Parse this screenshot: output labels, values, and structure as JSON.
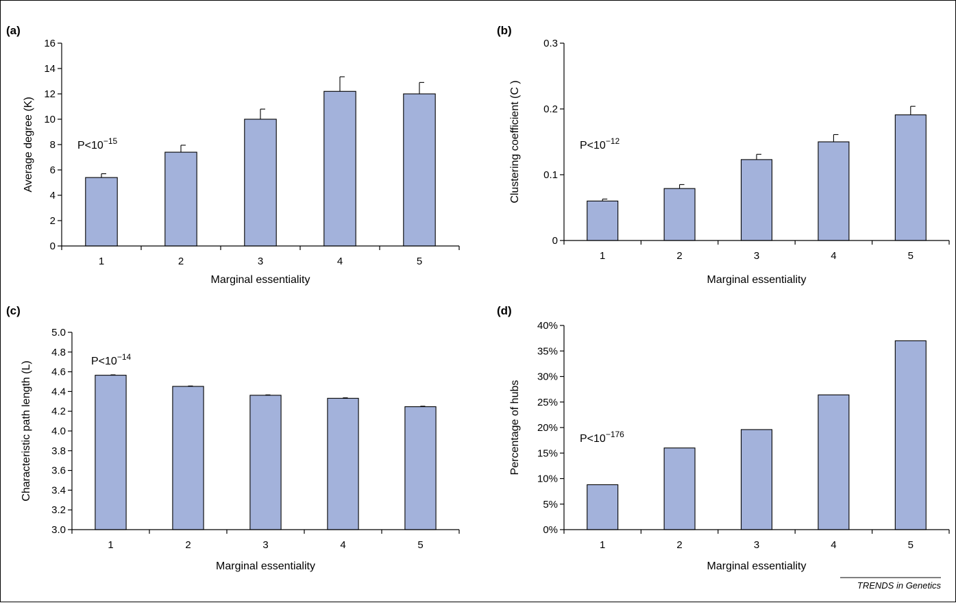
{
  "bar_color": "#a3b2db",
  "credit": "TRENDS in Genetics",
  "chart_data": [
    {
      "panel": "(a)",
      "type": "bar",
      "categories": [
        "1",
        "2",
        "3",
        "4",
        "5"
      ],
      "values": [
        5.4,
        7.4,
        10.0,
        12.2,
        12.0
      ],
      "errors": [
        0.3,
        0.55,
        0.8,
        1.15,
        0.9
      ],
      "ylim": [
        0,
        16
      ],
      "yticks": [
        0,
        2,
        4,
        6,
        8,
        10,
        12,
        14,
        16
      ],
      "ytick_labels": [
        "0",
        "2",
        "4",
        "6",
        "8",
        "10",
        "12",
        "14",
        "16"
      ],
      "xlabel": "Marginal essentiality",
      "ylabel": "Average degree (K)",
      "annotation": {
        "base": "P<10",
        "exp": "−15"
      }
    },
    {
      "panel": "(b)",
      "type": "bar",
      "categories": [
        "1",
        "2",
        "3",
        "4",
        "5"
      ],
      "values": [
        0.06,
        0.079,
        0.123,
        0.15,
        0.191
      ],
      "errors": [
        0.003,
        0.006,
        0.008,
        0.011,
        0.013
      ],
      "ylim": [
        0,
        0.3
      ],
      "yticks": [
        0,
        0.1,
        0.2,
        0.3
      ],
      "ytick_labels": [
        "0",
        "0.1",
        "0.2",
        "0.3"
      ],
      "xlabel": "Marginal essentiality",
      "ylabel": "Clustering coefficient (C )",
      "annotation": {
        "base": "P<10",
        "exp": "−12"
      }
    },
    {
      "panel": "(c)",
      "type": "bar",
      "categories": [
        "1",
        "2",
        "3",
        "4",
        "5"
      ],
      "values": [
        4.565,
        4.452,
        4.362,
        4.331,
        4.246
      ],
      "errors": [
        0.004,
        0.004,
        0.004,
        0.005,
        0.005
      ],
      "ylim": [
        3.0,
        5.0
      ],
      "yticks": [
        3.0,
        3.2,
        3.4,
        3.6,
        3.8,
        4.0,
        4.2,
        4.4,
        4.6,
        4.8,
        5.0
      ],
      "ytick_labels": [
        "3.0",
        "3.2",
        "3.4",
        "3.6",
        "3.8",
        "4.0",
        "4.2",
        "4.4",
        "4.6",
        "4.8",
        "5.0"
      ],
      "xlabel": "Marginal essentiality",
      "ylabel": "Characteristic path length (L)",
      "annotation": {
        "base": "P<10",
        "exp": "−14"
      }
    },
    {
      "panel": "(d)",
      "type": "bar",
      "categories": [
        "1",
        "2",
        "3",
        "4",
        "5"
      ],
      "values": [
        8.8,
        16.0,
        19.6,
        26.4,
        37.0
      ],
      "errors": [],
      "ylim": [
        0,
        40
      ],
      "yticks": [
        0,
        5,
        10,
        15,
        20,
        25,
        30,
        35,
        40
      ],
      "ytick_labels": [
        "0%",
        "5%",
        "10%",
        "15%",
        "20%",
        "25%",
        "30%",
        "35%",
        "40%"
      ],
      "xlabel": "Marginal essentiality",
      "ylabel": "Percentage of hubs",
      "annotation": {
        "base": "P<10",
        "exp": "−176"
      }
    }
  ]
}
